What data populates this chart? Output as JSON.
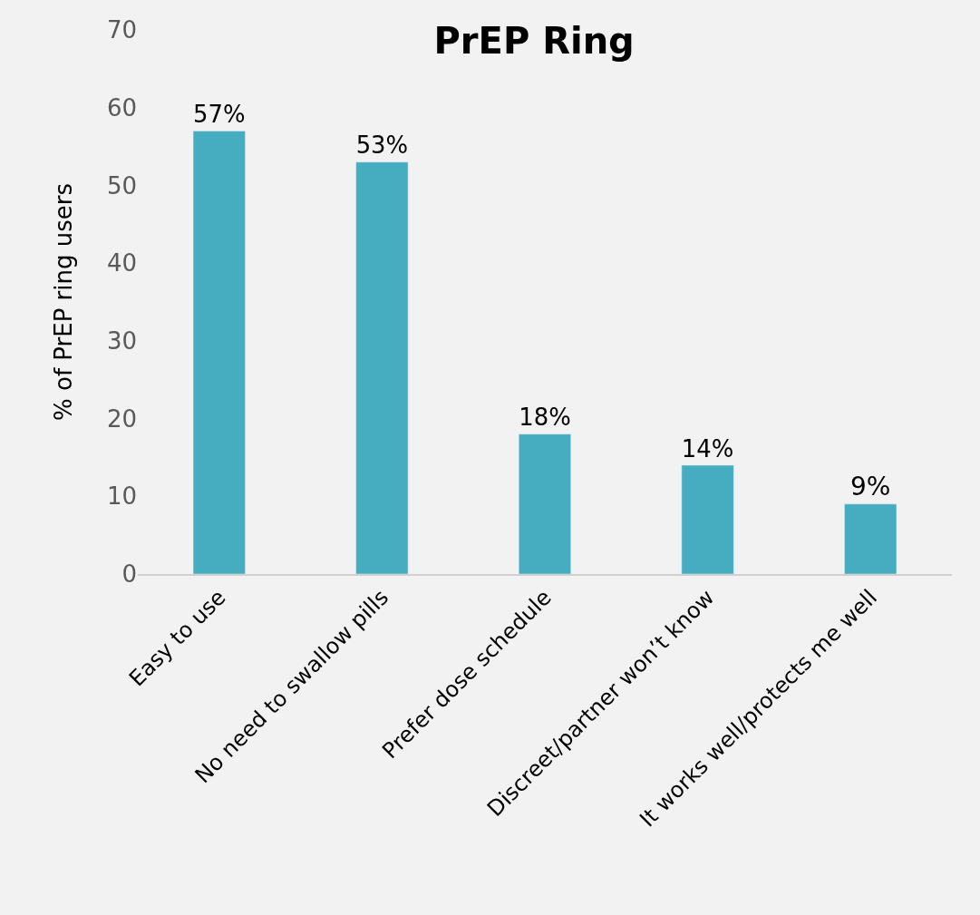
{
  "chart_data": {
    "type": "bar",
    "title": "PrEP Ring",
    "ylabel": "% of PrEP ring users",
    "categories": [
      "Easy to use",
      "No need to swallow pills",
      "Prefer dose schedule",
      "Discreet/partner won’t know",
      "It works well/protects me well"
    ],
    "values": [
      57,
      53,
      18,
      14,
      9
    ],
    "value_labels": [
      "57%",
      "53%",
      "18%",
      "14%",
      "9%"
    ],
    "color": "#46acbf",
    "ylim": [
      0,
      70
    ],
    "yticks": [
      0,
      10,
      20,
      30,
      40,
      50,
      60,
      70
    ],
    "grid": false
  }
}
